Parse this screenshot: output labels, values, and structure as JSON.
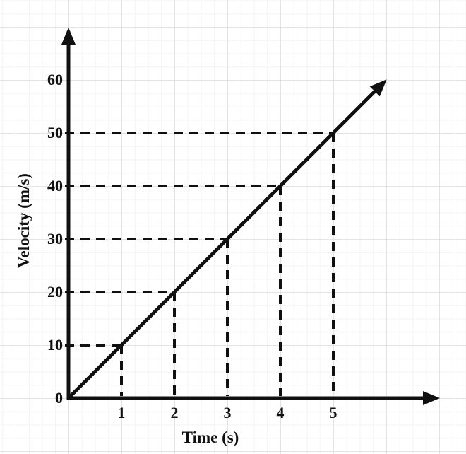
{
  "chart_data": {
    "type": "line",
    "title": "",
    "xlabel": "Time (s)",
    "ylabel": "Velocity (m/s)",
    "x": [
      0,
      1,
      2,
      3,
      4,
      5
    ],
    "y": [
      0,
      10,
      20,
      30,
      40,
      50
    ],
    "x_tick_values": [
      1,
      2,
      3,
      4,
      5
    ],
    "x_tick_labels": [
      "1",
      "2",
      "3",
      "4",
      "5"
    ],
    "y_tick_values": [
      0,
      10,
      20,
      30,
      40,
      50,
      60
    ],
    "y_tick_labels": [
      "0",
      "10",
      "20",
      "30",
      "40",
      "50",
      "60"
    ],
    "xlim": [
      0,
      7
    ],
    "ylim": [
      0,
      67
    ],
    "grid": true,
    "legend_position": "none",
    "guides": [
      [
        1,
        10
      ],
      [
        2,
        20
      ],
      [
        3,
        30
      ],
      [
        4,
        40
      ],
      [
        5,
        50
      ]
    ],
    "line": {
      "from": [
        0,
        0
      ],
      "to": [
        6,
        60
      ],
      "arrow_end": true
    },
    "axis_arrows": true,
    "colors": {
      "line": "#101010",
      "text": "#101010",
      "grid_major": "#e3e3e6",
      "grid_minor": "#f3f3f5",
      "background": "#ffffff"
    }
  }
}
